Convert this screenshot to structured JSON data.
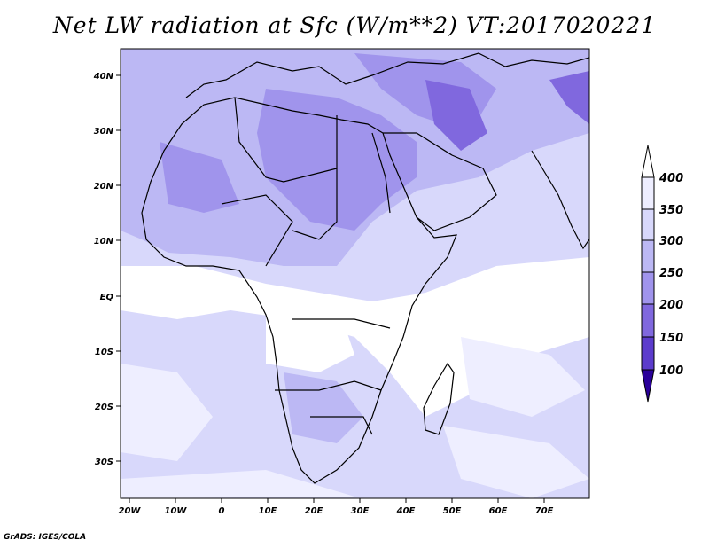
{
  "title": "Net LW radiation at Sfc (W/m**2) VT:2017020221",
  "credit": "GrADS: IGES/COLA",
  "map": {
    "lon_labels": [
      "20W",
      "10W",
      "0",
      "10E",
      "20E",
      "30E",
      "40E",
      "50E",
      "60E",
      "70E"
    ],
    "lat_labels": [
      "40N",
      "30N",
      "20N",
      "10N",
      "EQ",
      "10S",
      "20S",
      "30S"
    ]
  },
  "colorbar": {
    "labels": [
      "400",
      "350",
      "300",
      "250",
      "200",
      "150",
      "100"
    ],
    "colors": [
      "#eeeeff",
      "#d8d8fb",
      "#bcb8f4",
      "#a094ec",
      "#8068de",
      "#5c3ccc",
      "#3a0fb0",
      "#2a009a"
    ],
    "arrow_top_color": "#ffffff",
    "arrow_bottom_color": "#2a009a"
  }
}
